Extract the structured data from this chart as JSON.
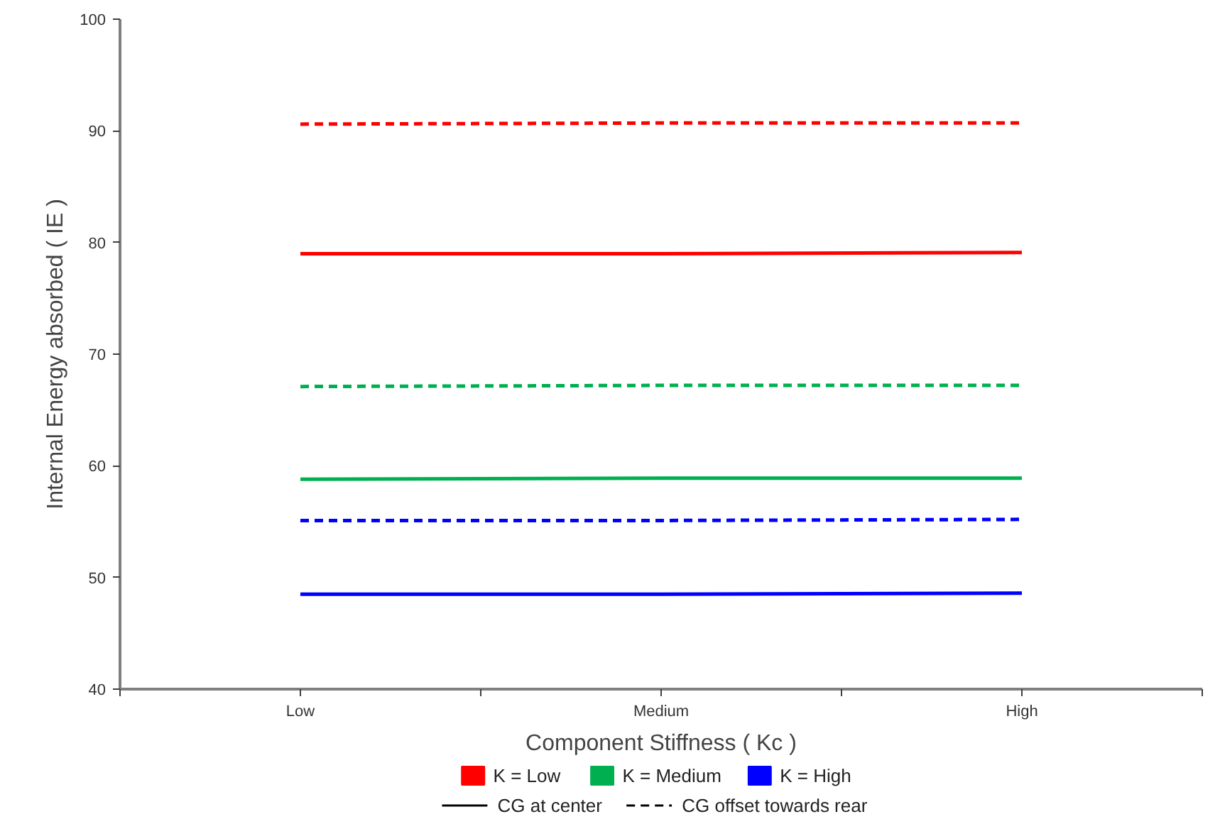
{
  "chart_data": {
    "type": "line",
    "xlabel": "Component Stiffness ( Kc )",
    "ylabel": "Internal Energy absorbed ( IE )",
    "categories": [
      "Low",
      "Medium",
      "High"
    ],
    "series": [
      {
        "name": "K = Low",
        "color": "#ff0000",
        "line_style": "dashed",
        "values": [
          90.6,
          90.7,
          90.7
        ]
      },
      {
        "color": "#ff0000",
        "line_style": "solid",
        "values": [
          79.0,
          79.0,
          79.1
        ]
      },
      {
        "name": "K = Medium",
        "color": "#00b050",
        "line_style": "dashed",
        "values": [
          67.1,
          67.2,
          67.2
        ]
      },
      {
        "color": "#00b050",
        "line_style": "solid",
        "values": [
          58.8,
          58.9,
          58.9
        ]
      },
      {
        "name": "K = High",
        "color": "#0000ff",
        "line_style": "dashed",
        "values": [
          55.1,
          55.1,
          55.2
        ]
      },
      {
        "color": "#0000ff",
        "line_style": "solid",
        "values": [
          48.5,
          48.5,
          48.6
        ]
      }
    ],
    "annotations": [
      "CG at center",
      "CG offset towards rear"
    ],
    "ylim": [
      40,
      100
    ],
    "yticks": [
      40,
      50,
      60,
      70,
      80,
      90,
      100
    ],
    "grid": false,
    "legend": "bottom",
    "marker": "none"
  }
}
